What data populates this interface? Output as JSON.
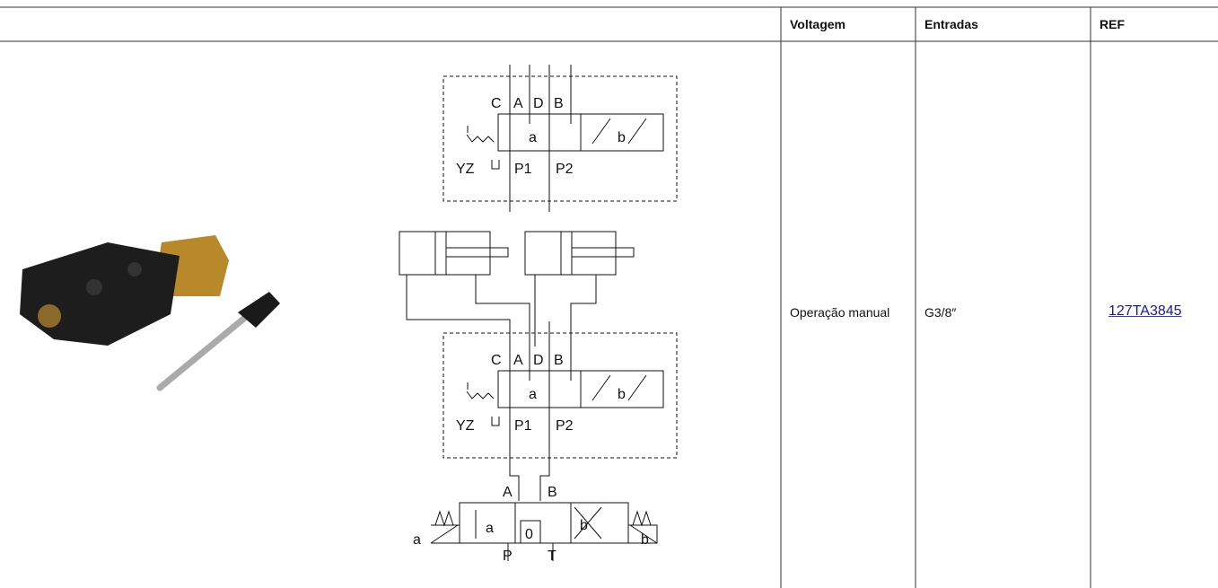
{
  "table": {
    "headers": [
      "Voltagem",
      "Entradas",
      "REF"
    ],
    "rows": [
      [
        "Operação manual",
        "G3/8″",
        "127TA3845"
      ]
    ]
  },
  "diagram": {
    "valve_labels": [
      "C",
      "A",
      "D",
      "B",
      "a",
      "b",
      "YZ",
      "P1",
      "P2"
    ],
    "lower_valve_labels": [
      "A",
      "B",
      "a",
      "0",
      "b",
      "a",
      "b",
      "P",
      "T"
    ]
  }
}
